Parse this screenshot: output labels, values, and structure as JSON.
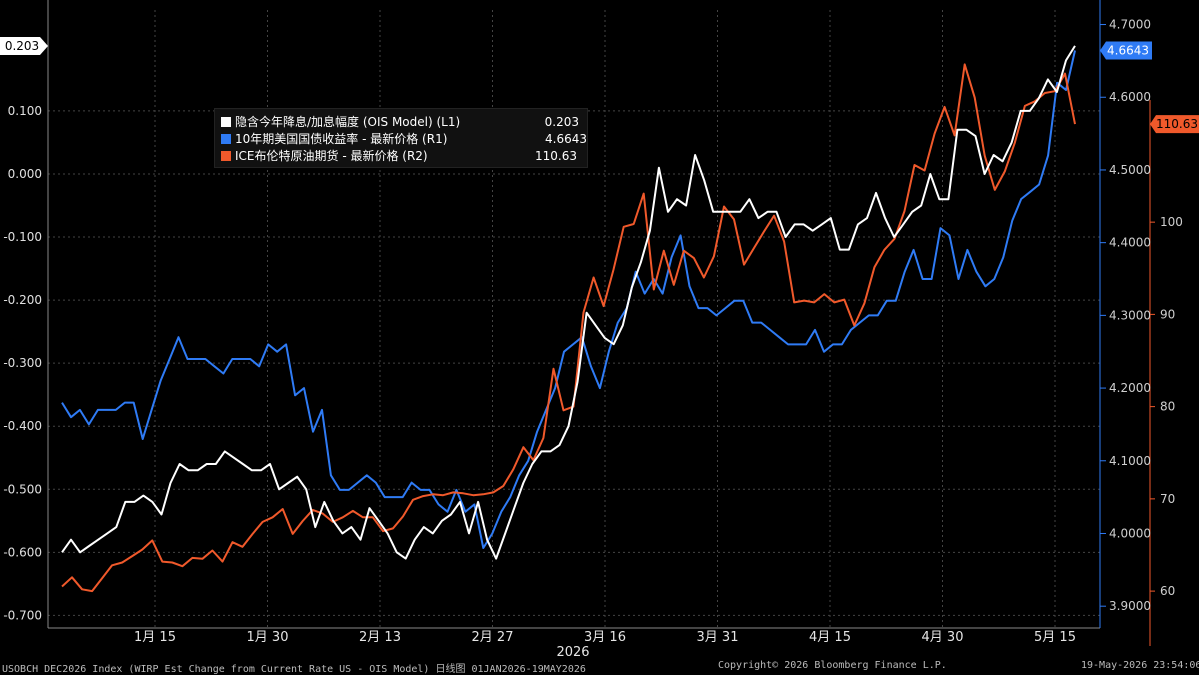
{
  "chart_data": {
    "type": "line",
    "legend": [
      {
        "name": "隐含今年降息/加息幅度 (OIS Model) (L1)",
        "value": "0.203",
        "color": "#ffffff"
      },
      {
        "name": "10年期美国国债收益率 - 最新价格 (R1)",
        "value": "4.6643",
        "color": "#2f7bf5"
      },
      {
        "name": "ICE布伦特原油期货 - 最新价格 (R2)",
        "value": "110.63",
        "color": "#f0592b"
      }
    ],
    "last_value_tags": {
      "l1": "0.203",
      "r1": "4.6643",
      "r2": "110.63"
    },
    "x_ticks": [
      "1月 15",
      "1月 30",
      "2月 13",
      "2月 27",
      "3月 16",
      "3月 31",
      "4月 15",
      "4月 30",
      "5月 15"
    ],
    "x_year": "2026",
    "left_axis": {
      "ticks": [
        "0.100",
        "0.000",
        "-0.100",
        "-0.200",
        "-0.300",
        "-0.400",
        "-0.500",
        "-0.600",
        "-0.700"
      ],
      "ylim": [
        -0.72,
        0.26
      ]
    },
    "right_axis_1": {
      "ticks": [
        "4.7000",
        "4.6000",
        "4.5000",
        "4.4000",
        "4.3000",
        "4.2000",
        "4.1000",
        "4.0000",
        "3.9000"
      ],
      "ylim": [
        3.87,
        4.72
      ]
    },
    "right_axis_2": {
      "ticks": [
        "100",
        "90",
        "80",
        "70",
        "60"
      ],
      "ylim": [
        56,
        123
      ]
    },
    "series": [
      {
        "name": "隐含今年降息/加息幅度 (OIS Model) (L1)",
        "axis": "left",
        "color": "#ffffff",
        "values": [
          -0.6,
          -0.58,
          -0.6,
          -0.59,
          -0.58,
          -0.57,
          -0.56,
          -0.52,
          -0.52,
          -0.51,
          -0.52,
          -0.54,
          -0.49,
          -0.46,
          -0.47,
          -0.47,
          -0.46,
          -0.46,
          -0.44,
          -0.45,
          -0.46,
          -0.47,
          -0.47,
          -0.46,
          -0.5,
          -0.49,
          -0.48,
          -0.5,
          -0.56,
          -0.52,
          -0.55,
          -0.57,
          -0.56,
          -0.58,
          -0.53,
          -0.55,
          -0.57,
          -0.6,
          -0.61,
          -0.58,
          -0.56,
          -0.57,
          -0.55,
          -0.54,
          -0.52,
          -0.57,
          -0.52,
          -0.58,
          -0.61,
          -0.57,
          -0.53,
          -0.49,
          -0.46,
          -0.44,
          -0.44,
          -0.43,
          -0.4,
          -0.33,
          -0.22,
          -0.24,
          -0.26,
          -0.27,
          -0.24,
          -0.18,
          -0.14,
          -0.09,
          0.01,
          -0.06,
          -0.04,
          -0.05,
          0.03,
          -0.01,
          -0.06,
          -0.06,
          -0.06,
          -0.06,
          -0.04,
          -0.07,
          -0.06,
          -0.06,
          -0.1,
          -0.08,
          -0.08,
          -0.09,
          -0.08,
          -0.07,
          -0.12,
          -0.12,
          -0.08,
          -0.07,
          -0.03,
          -0.07,
          -0.1,
          -0.08,
          -0.06,
          -0.05,
          0.0,
          -0.04,
          -0.04,
          0.07,
          0.07,
          0.06,
          0.0,
          0.03,
          0.02,
          0.05,
          0.1,
          0.1,
          0.12,
          0.15,
          0.13,
          0.18,
          0.203
        ]
      },
      {
        "name": "10年期美国国债收益率 - 最新价格 (R1)",
        "axis": "right1",
        "color": "#2f7bf5",
        "values": [
          4.18,
          4.16,
          4.17,
          4.15,
          4.17,
          4.17,
          4.17,
          4.18,
          4.18,
          4.13,
          4.17,
          4.21,
          4.24,
          4.27,
          4.24,
          4.24,
          4.24,
          4.23,
          4.22,
          4.24,
          4.24,
          4.24,
          4.23,
          4.26,
          4.25,
          4.26,
          4.19,
          4.2,
          4.14,
          4.17,
          4.08,
          4.06,
          4.06,
          4.07,
          4.08,
          4.07,
          4.05,
          4.05,
          4.05,
          4.07,
          4.06,
          4.06,
          4.04,
          4.03,
          4.06,
          4.03,
          4.04,
          3.98,
          4.0,
          4.03,
          4.05,
          4.08,
          4.1,
          4.14,
          4.17,
          4.2,
          4.25,
          4.26,
          4.27,
          4.23,
          4.2,
          4.25,
          4.29,
          4.31,
          4.36,
          4.33,
          4.35,
          4.33,
          4.38,
          4.41,
          4.34,
          4.31,
          4.31,
          4.3,
          4.31,
          4.32,
          4.32,
          4.29,
          4.29,
          4.28,
          4.27,
          4.26,
          4.26,
          4.26,
          4.28,
          4.25,
          4.26,
          4.26,
          4.28,
          4.29,
          4.3,
          4.3,
          4.32,
          4.32,
          4.36,
          4.39,
          4.35,
          4.35,
          4.42,
          4.41,
          4.35,
          4.39,
          4.36,
          4.34,
          4.35,
          4.38,
          4.43,
          4.46,
          4.47,
          4.48,
          4.52,
          4.62,
          4.61,
          4.6643
        ]
      },
      {
        "name": "ICE布伦特原油期货 - 最新价格 (R2)",
        "axis": "right2",
        "color": "#f0592b",
        "values": [
          60.5,
          61.5,
          60.2,
          60.0,
          61.4,
          62.8,
          63.1,
          63.8,
          64.5,
          65.5,
          63.2,
          63.1,
          62.7,
          63.6,
          63.5,
          64.4,
          63.2,
          65.3,
          64.8,
          66.2,
          67.5,
          68.0,
          68.9,
          66.2,
          67.6,
          68.8,
          68.4,
          67.5,
          68.0,
          68.7,
          68.0,
          68.0,
          66.5,
          66.8,
          68.1,
          69.9,
          70.3,
          70.5,
          70.4,
          70.7,
          70.6,
          70.4,
          70.5,
          70.7,
          71.4,
          73.2,
          75.6,
          74.2,
          76.6,
          84.1,
          79.6,
          80.0,
          90.2,
          94.0,
          90.9,
          94.9,
          99.5,
          99.8,
          103.1,
          92.7,
          96.9,
          93.2,
          96.9,
          96.1,
          94.0,
          96.3,
          101.7,
          100.3,
          95.4,
          97.2,
          99.0,
          100.7,
          97.9,
          91.3,
          91.5,
          91.3,
          92.2,
          91.3,
          91.6,
          88.8,
          91.2,
          95.1,
          97.0,
          98.2,
          101.2,
          106.2,
          105.6,
          109.6,
          112.5,
          109.4,
          117.1,
          113.5,
          107.2,
          103.5,
          105.5,
          108.6,
          112.6,
          113.1,
          114.0,
          114.2,
          116.1,
          110.63
        ]
      }
    ]
  },
  "footer": {
    "left": "USOBCH DEC2026 Index (WIRP Est Change from Current Rate US - OIS Model) 日线图 01JAN2026-19MAY2026",
    "center": "Copyright© 2026 Bloomberg Finance L.P.",
    "right": "19-May-2026 23:54:06"
  }
}
